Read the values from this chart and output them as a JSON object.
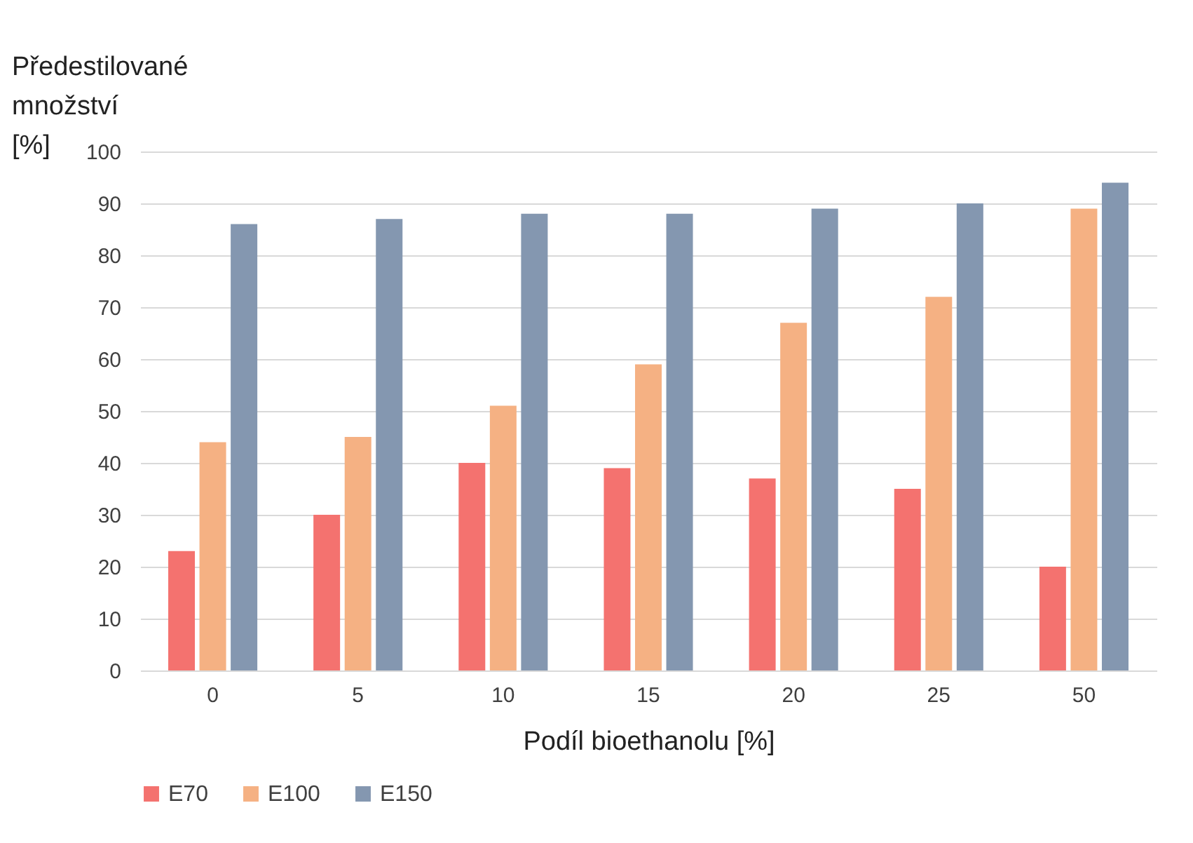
{
  "chart_data": {
    "type": "bar",
    "xlabel": "Podíl bioethanolu [%]",
    "ylabel": "Předestilované množství [%]",
    "categories": [
      "0",
      "5",
      "10",
      "15",
      "20",
      "25",
      "50"
    ],
    "series": [
      {
        "name": "E70",
        "color": "#f4726f",
        "values": [
          23,
          30,
          40,
          39,
          37,
          35,
          20
        ]
      },
      {
        "name": "E100",
        "color": "#f5b183",
        "values": [
          44,
          45,
          51,
          59,
          67,
          72,
          89
        ]
      },
      {
        "name": "E150",
        "color": "#8497b0",
        "values": [
          86,
          87,
          88,
          88,
          89,
          90,
          94
        ]
      }
    ],
    "ylim": [
      0,
      100
    ],
    "yticks": [
      0,
      10,
      20,
      30,
      40,
      50,
      60,
      70,
      80,
      90,
      100
    ],
    "grid": "y",
    "legend": "bottom"
  }
}
